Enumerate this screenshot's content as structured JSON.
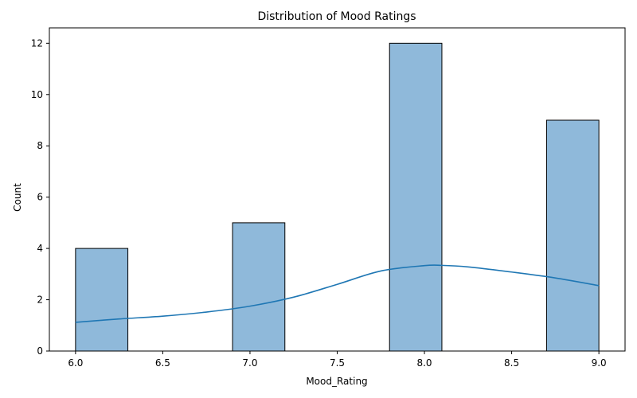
{
  "chart_data": {
    "type": "bar",
    "title": "Distribution of Mood Ratings",
    "xlabel": "Mood_Rating",
    "ylabel": "Count",
    "xlim": [
      5.85,
      9.15
    ],
    "ylim": [
      0,
      12.6
    ],
    "xticks": [
      "6.0",
      "6.5",
      "7.0",
      "7.5",
      "8.0",
      "8.5",
      "9.0"
    ],
    "yticks": [
      "0",
      "2",
      "4",
      "6",
      "8",
      "10",
      "12"
    ],
    "bins": [
      {
        "start": 6.0,
        "end": 6.3,
        "count": 4
      },
      {
        "start": 6.3,
        "end": 6.6,
        "count": 0
      },
      {
        "start": 6.6,
        "end": 6.9,
        "count": 0
      },
      {
        "start": 6.9,
        "end": 7.2,
        "count": 5
      },
      {
        "start": 7.2,
        "end": 7.5,
        "count": 0
      },
      {
        "start": 7.5,
        "end": 7.8,
        "count": 0
      },
      {
        "start": 7.8,
        "end": 8.1,
        "count": 12
      },
      {
        "start": 8.1,
        "end": 8.4,
        "count": 0
      },
      {
        "start": 8.4,
        "end": 8.7,
        "count": 0
      },
      {
        "start": 8.7,
        "end": 9.0,
        "count": 9
      }
    ],
    "kde": {
      "x": [
        6.0,
        6.25,
        6.5,
        6.75,
        7.0,
        7.25,
        7.5,
        7.75,
        8.0,
        8.1,
        8.25,
        8.5,
        8.75,
        9.0
      ],
      "y": [
        1.12,
        1.25,
        1.36,
        1.52,
        1.75,
        2.1,
        2.6,
        3.12,
        3.33,
        3.34,
        3.28,
        3.08,
        2.85,
        2.55
      ]
    },
    "grid": false,
    "colors": {
      "bar_fill": "#8fb9da",
      "bar_edge": "#000000",
      "kde_line": "#1f77b4"
    }
  }
}
